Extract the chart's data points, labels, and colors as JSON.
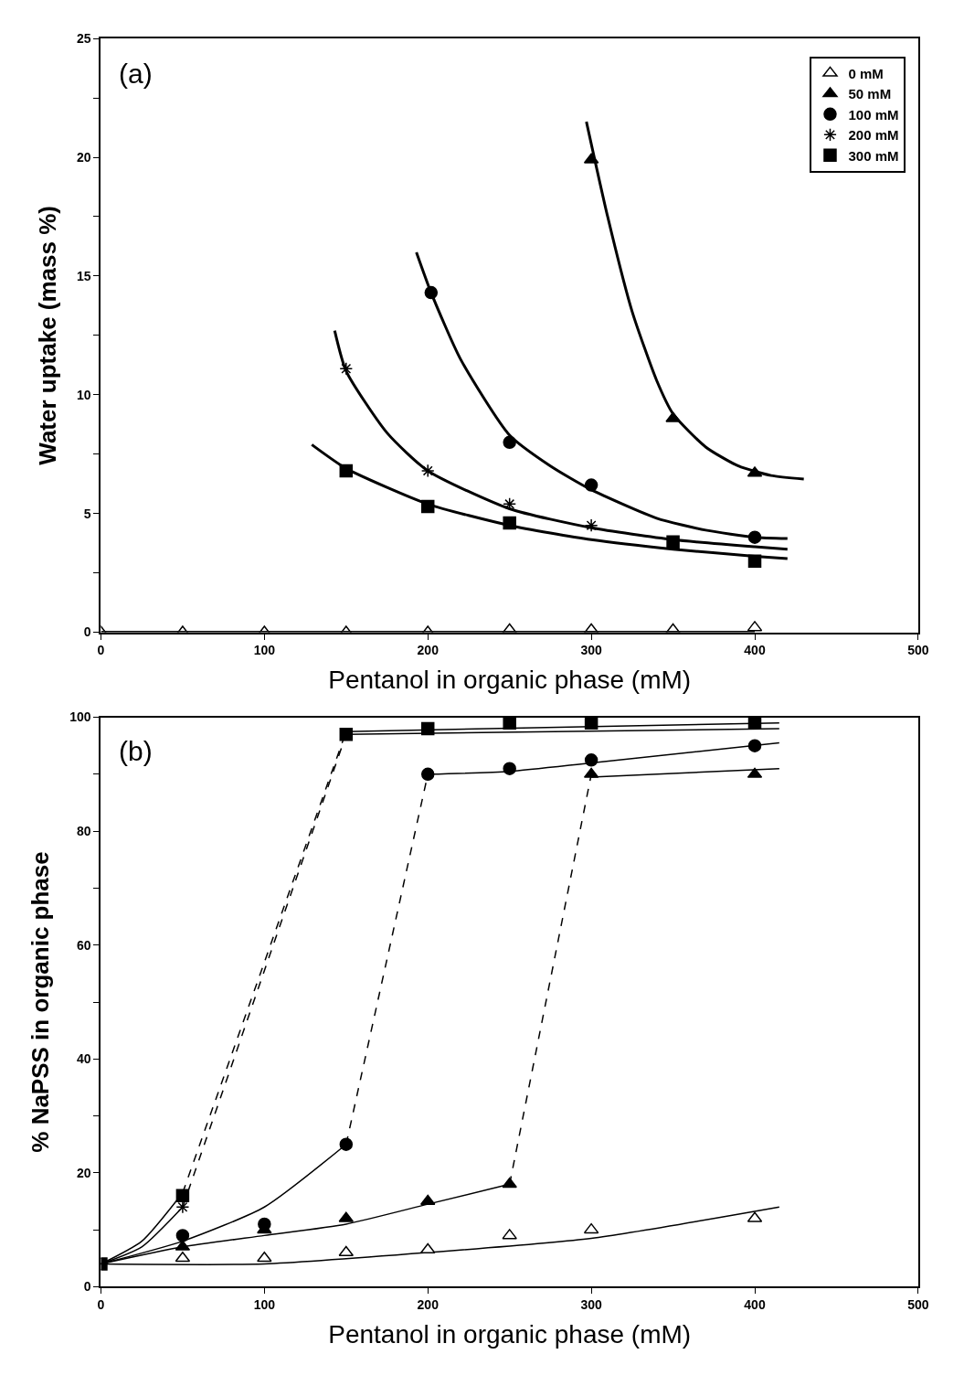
{
  "chart_data": [
    {
      "type": "scatter",
      "xlabel": "Pentanol in organic phase (mM)",
      "ylabel": "Water uptake (mass %)",
      "annotations": [
        "(a)"
      ],
      "xlim": [
        0,
        500
      ],
      "xticks": [
        0,
        100,
        200,
        300,
        400,
        500
      ],
      "ylim": [
        0,
        25
      ],
      "yticks": [
        0,
        {
          "value": 2.5,
          "label": null
        },
        5,
        {
          "value": 7.5,
          "label": null
        },
        10,
        {
          "value": 12.5,
          "label": null
        },
        15,
        {
          "value": 17.5,
          "label": null
        },
        20,
        {
          "value": 22.5,
          "label": null
        },
        25
      ],
      "grid": false,
      "legend": "top right",
      "series": [
        {
          "name": "0 mM",
          "marker": "triangle",
          "color": "#ffffff",
          "x": [
            0,
            50,
            100,
            150,
            200,
            250,
            300,
            350,
            400
          ],
          "values": [
            0,
            0,
            0,
            0,
            0,
            0.1,
            0.1,
            0.1,
            0.2
          ]
        },
        {
          "name": "50 mM",
          "marker": "triangle",
          "color": "#000000",
          "x": [
            300,
            350,
            400
          ],
          "values": [
            19.9,
            9.0,
            6.7
          ]
        },
        {
          "name": "100 mM",
          "marker": "circle",
          "color": "#000000",
          "x": [
            202,
            250,
            300,
            400
          ],
          "values": [
            14.3,
            8.0,
            6.2,
            4.0
          ]
        },
        {
          "name": "200 mM",
          "marker": "cross",
          "color": "#000000",
          "x": [
            150,
            200,
            250,
            300
          ],
          "values": [
            11.1,
            6.8,
            5.4,
            4.5
          ]
        },
        {
          "name": "300 mM",
          "marker": "square",
          "color": "#000000",
          "x": [
            150,
            200,
            250,
            350,
            400
          ],
          "values": [
            6.8,
            5.3,
            4.6,
            3.8,
            3.0
          ]
        },
        {
          "type": "line",
          "color": "#000000",
          "line_style": "solid",
          "x": [
            0,
            100,
            200,
            300,
            400
          ],
          "values": [
            0,
            0,
            0,
            0,
            0
          ]
        },
        {
          "type": "line",
          "color": "#000000",
          "line_style": "solid",
          "x": [
            297,
            310,
            325,
            340,
            350,
            370,
            390,
            410,
            430
          ],
          "values": [
            21.5,
            17.5,
            13.5,
            10.6,
            9.2,
            7.8,
            7.0,
            6.6,
            6.45
          ]
        },
        {
          "type": "line",
          "color": "#000000",
          "line_style": "solid",
          "x": [
            193,
            202,
            220,
            250,
            275,
            300,
            340,
            370,
            400,
            420
          ],
          "values": [
            16.0,
            14.3,
            11.5,
            8.3,
            7.0,
            6.0,
            4.8,
            4.3,
            4.0,
            3.95
          ]
        },
        {
          "type": "line",
          "color": "#000000",
          "line_style": "solid",
          "x": [
            143,
            150,
            175,
            200,
            250,
            300,
            350,
            400,
            420
          ],
          "values": [
            12.7,
            11.0,
            8.4,
            6.8,
            5.2,
            4.4,
            3.9,
            3.6,
            3.5
          ]
        },
        {
          "type": "line",
          "color": "#000000",
          "line_style": "solid",
          "x": [
            129,
            150,
            200,
            250,
            300,
            350,
            400,
            420
          ],
          "values": [
            7.9,
            6.9,
            5.4,
            4.5,
            3.9,
            3.5,
            3.2,
            3.1
          ]
        }
      ]
    },
    {
      "type": "scatter",
      "xlabel": "Pentanol in organic phase (mM)",
      "ylabel": "% NaPSS in organic phase",
      "annotations": [
        "(b)"
      ],
      "xlim": [
        0,
        500
      ],
      "xticks": [
        0,
        100,
        200,
        300,
        400,
        500
      ],
      "ylim": [
        0,
        100
      ],
      "yticks": [
        0,
        {
          "value": 10,
          "label": null
        },
        20,
        {
          "value": 30,
          "label": null
        },
        40,
        {
          "value": 50,
          "label": null
        },
        60,
        {
          "value": 70,
          "label": null
        },
        80,
        {
          "value": 90,
          "label": null
        },
        100
      ],
      "grid": false,
      "legend": false,
      "series": [
        {
          "type": "line",
          "color": "#000000",
          "line_style": "solid",
          "x": [
            0,
            100,
            200,
            300,
            415
          ],
          "values": [
            4,
            4,
            6,
            8.5,
            14
          ]
        },
        {
          "type": "line",
          "color": "#000000",
          "line_style": "solid",
          "x": [
            0,
            50,
            100,
            150,
            200,
            250
          ],
          "values": [
            4,
            7,
            9,
            11,
            14.5,
            18
          ]
        },
        {
          "type": "line",
          "color": "#000000",
          "line_style": "dashed",
          "x": [
            250,
            300
          ],
          "values": [
            18,
            90
          ]
        },
        {
          "type": "line",
          "color": "#000000",
          "line_style": "solid",
          "x": [
            300,
            415
          ],
          "values": [
            89.5,
            91
          ]
        },
        {
          "type": "line",
          "color": "#000000",
          "line_style": "solid",
          "x": [
            0,
            50,
            100,
            150
          ],
          "values": [
            4,
            8,
            14,
            25
          ]
        },
        {
          "type": "line",
          "color": "#000000",
          "line_style": "dashed",
          "x": [
            150,
            200
          ],
          "values": [
            25,
            90
          ]
        },
        {
          "type": "line",
          "color": "#000000",
          "line_style": "solid",
          "x": [
            200,
            250,
            300,
            415
          ],
          "values": [
            90,
            90.5,
            92,
            95.5
          ]
        },
        {
          "type": "line",
          "color": "#000000",
          "line_style": "solid",
          "x": [
            0,
            25,
            50
          ],
          "values": [
            4,
            7,
            14
          ]
        },
        {
          "type": "line",
          "color": "#000000",
          "line_style": "dashed",
          "x": [
            50,
            150
          ],
          "values": [
            14,
            97
          ]
        },
        {
          "type": "line",
          "color": "#000000",
          "line_style": "solid",
          "x": [
            150,
            415
          ],
          "values": [
            97,
            98
          ]
        },
        {
          "type": "line",
          "color": "#000000",
          "line_style": "solid",
          "x": [
            0,
            25,
            50
          ],
          "values": [
            4,
            8,
            16.5
          ]
        },
        {
          "type": "line",
          "color": "#000000",
          "line_style": "dashed",
          "x": [
            50,
            150
          ],
          "values": [
            16.5,
            97.5
          ]
        },
        {
          "type": "line",
          "color": "#000000",
          "line_style": "solid",
          "x": [
            150,
            415
          ],
          "values": [
            97.5,
            99
          ]
        },
        {
          "marker": "triangle",
          "color": "#ffffff",
          "x": [
            50,
            100,
            150,
            200,
            250,
            300,
            400
          ],
          "values": [
            5,
            5,
            6,
            6.5,
            9,
            10,
            12
          ]
        },
        {
          "marker": "triangle",
          "color": "#000000",
          "x": [
            50,
            100,
            150,
            200,
            250,
            300,
            400
          ],
          "values": [
            7,
            10,
            12,
            15,
            18,
            90,
            90
          ]
        },
        {
          "marker": "circle",
          "color": "#000000",
          "x": [
            50,
            100,
            150,
            200,
            250,
            300,
            400
          ],
          "values": [
            9,
            11,
            25,
            90,
            91,
            92.5,
            95
          ]
        },
        {
          "marker": "cross",
          "color": "#000000",
          "x": [
            50
          ],
          "values": [
            14
          ]
        },
        {
          "marker": "square",
          "color": "#000000",
          "x": [
            0,
            50,
            150,
            200,
            250,
            300,
            400
          ],
          "values": [
            4,
            16,
            97,
            98,
            99,
            99,
            99
          ]
        }
      ]
    }
  ]
}
